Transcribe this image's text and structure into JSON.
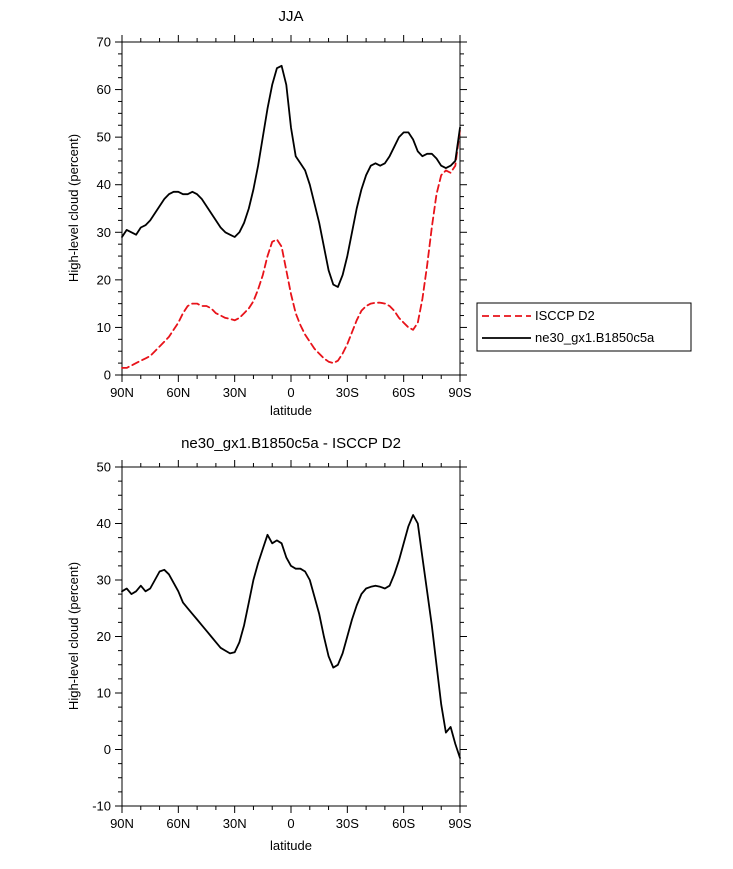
{
  "colors": {
    "foreground": "#000000",
    "background": "#ffffff",
    "isccp_red": "#e8131a",
    "model_black": "#000000"
  },
  "chart_data": [
    {
      "type": "line",
      "title": "JJA",
      "xlabel": "latitude",
      "ylabel": "High-level cloud (percent)",
      "xlim": [
        90,
        -90
      ],
      "ylim": [
        0,
        70
      ],
      "grid": false,
      "legend_position": "outside-right",
      "xticks": [
        {
          "v": 90,
          "label": "90N"
        },
        {
          "v": 60,
          "label": "60N"
        },
        {
          "v": 30,
          "label": "30N"
        },
        {
          "v": 0,
          "label": "0"
        },
        {
          "v": -30,
          "label": "30S"
        },
        {
          "v": -60,
          "label": "60S"
        },
        {
          "v": -90,
          "label": "90S"
        }
      ],
      "yticks": [
        0,
        10,
        20,
        30,
        40,
        50,
        60,
        70
      ],
      "x": [
        90,
        87.5,
        85,
        82.5,
        80,
        77.5,
        75,
        72.5,
        70,
        67.5,
        65,
        62.5,
        60,
        57.5,
        55,
        52.5,
        50,
        47.5,
        45,
        42.5,
        40,
        37.5,
        35,
        32.5,
        30,
        27.5,
        25,
        22.5,
        20,
        17.5,
        15,
        12.5,
        10,
        7.5,
        5,
        2.5,
        0,
        -2.5,
        -5,
        -7.5,
        -10,
        -12.5,
        -15,
        -17.5,
        -20,
        -22.5,
        -25,
        -27.5,
        -30,
        -32.5,
        -35,
        -37.5,
        -40,
        -42.5,
        -45,
        -47.5,
        -50,
        -52.5,
        -55,
        -57.5,
        -60,
        -62.5,
        -65,
        -67.5,
        -70,
        -72.5,
        -75,
        -77.5,
        -80,
        -82.5,
        -85,
        -87.5,
        -90
      ],
      "series": [
        {
          "name": "ISCCP D2",
          "color": "#e8131a",
          "dash": "7 4",
          "values": [
            1.5,
            1.5,
            2,
            2.5,
            3,
            3.5,
            4,
            5,
            6,
            7,
            8,
            9.5,
            11,
            13,
            14.5,
            15,
            15,
            14.5,
            14.5,
            14,
            13,
            12.5,
            12,
            11.8,
            11.5,
            12,
            13,
            14,
            15.5,
            18,
            21,
            25,
            28,
            28.5,
            27,
            22,
            17,
            13,
            10.5,
            8.5,
            7,
            5.5,
            4.5,
            3.5,
            2.8,
            2.5,
            3,
            4.5,
            6.5,
            9,
            11.5,
            13.5,
            14.5,
            15,
            15.2,
            15.2,
            15,
            14.5,
            13.5,
            12,
            11,
            10,
            9.5,
            11,
            16,
            23,
            31,
            38,
            42,
            43,
            42.5,
            44,
            51.5
          ]
        },
        {
          "name": "ne30_gx1.B1850c5a",
          "color": "#000000",
          "dash": null,
          "values": [
            29,
            30.5,
            30,
            29.5,
            31,
            31.5,
            32.5,
            34,
            35.5,
            37,
            38,
            38.5,
            38.5,
            38,
            38,
            38.5,
            38,
            37,
            35.5,
            34,
            32.5,
            31,
            30,
            29.5,
            29,
            30,
            32,
            35,
            39,
            44,
            50,
            56,
            61,
            64.5,
            65,
            61,
            52,
            46,
            44.5,
            43,
            40,
            36,
            32,
            27,
            22,
            19,
            18.5,
            21,
            25,
            30,
            35,
            39,
            42,
            44,
            44.5,
            44,
            44.5,
            46,
            48,
            50,
            51,
            51,
            49.5,
            47,
            46,
            46.5,
            46.5,
            45.5,
            44,
            43.5,
            44,
            45,
            52
          ]
        }
      ]
    },
    {
      "type": "line",
      "title": "ne30_gx1.B1850c5a - ISCCP D2",
      "xlabel": "latitude",
      "ylabel": "High-level cloud (percent)",
      "xlim": [
        90,
        -90
      ],
      "ylim": [
        -10,
        50
      ],
      "grid": false,
      "legend_position": "none",
      "xticks": [
        {
          "v": 90,
          "label": "90N"
        },
        {
          "v": 60,
          "label": "60N"
        },
        {
          "v": 30,
          "label": "30N"
        },
        {
          "v": 0,
          "label": "0"
        },
        {
          "v": -30,
          "label": "30S"
        },
        {
          "v": -60,
          "label": "60S"
        },
        {
          "v": -90,
          "label": "90S"
        }
      ],
      "yticks": [
        -10,
        0,
        10,
        20,
        30,
        40,
        50
      ],
      "x": [
        90,
        87.5,
        85,
        82.5,
        80,
        77.5,
        75,
        72.5,
        70,
        67.5,
        65,
        62.5,
        60,
        57.5,
        55,
        52.5,
        50,
        47.5,
        45,
        42.5,
        40,
        37.5,
        35,
        32.5,
        30,
        27.5,
        25,
        22.5,
        20,
        17.5,
        15,
        12.5,
        10,
        7.5,
        5,
        2.5,
        0,
        -2.5,
        -5,
        -7.5,
        -10,
        -12.5,
        -15,
        -17.5,
        -20,
        -22.5,
        -25,
        -27.5,
        -30,
        -32.5,
        -35,
        -37.5,
        -40,
        -42.5,
        -45,
        -47.5,
        -50,
        -52.5,
        -55,
        -57.5,
        -60,
        -62.5,
        -65,
        -67.5,
        -70,
        -72.5,
        -75,
        -77.5,
        -80,
        -82.5,
        -85,
        -87.5,
        -90
      ],
      "series": [
        {
          "name": "ne30_gx1.B1850c5a - ISCCP D2",
          "color": "#000000",
          "dash": null,
          "values": [
            28,
            28.5,
            27.5,
            28,
            29,
            28,
            28.5,
            30,
            31.5,
            31.8,
            31,
            29.5,
            28,
            26,
            25,
            24,
            23,
            22,
            21,
            20,
            19,
            18,
            17.5,
            17,
            17.2,
            19,
            22,
            26,
            30,
            33,
            35.5,
            38,
            36.5,
            37,
            36.5,
            34,
            32.5,
            32,
            32,
            31.5,
            30,
            27,
            24,
            20,
            16.5,
            14.5,
            15,
            17,
            20,
            23,
            25.5,
            27.5,
            28.5,
            28.8,
            29,
            28.8,
            28.5,
            29,
            31,
            33.5,
            36.5,
            39.5,
            41.5,
            40,
            34,
            28,
            22,
            15,
            8,
            3,
            4,
            1,
            -1.5
          ]
        }
      ]
    }
  ]
}
